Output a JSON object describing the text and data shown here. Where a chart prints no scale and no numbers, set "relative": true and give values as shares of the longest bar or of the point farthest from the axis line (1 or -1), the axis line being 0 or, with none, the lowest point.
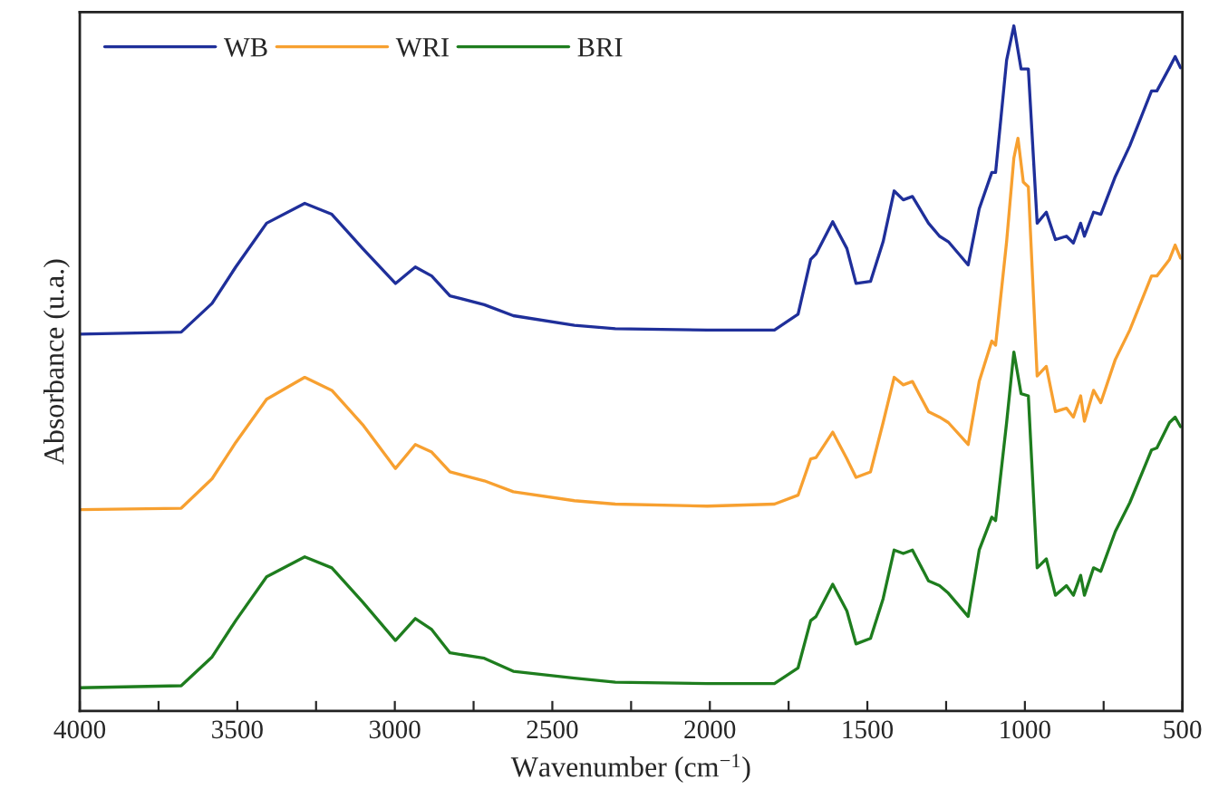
{
  "chart_data": {
    "type": "line",
    "relative": true,
    "xlabel": "Wavenumber (cm$^{−1}$)",
    "ylabel": "Absorbance (u.a.)",
    "xlim": [
      4000,
      500
    ],
    "xticks": [
      4000,
      {
        "value": 3750,
        "label": null
      },
      3500,
      {
        "value": 3250,
        "label": null
      },
      3000,
      {
        "value": 2750,
        "label": null
      },
      2500,
      {
        "value": 2250,
        "label": null
      },
      2000,
      {
        "value": 1750,
        "label": null
      },
      1500,
      {
        "value": 1250,
        "label": null
      },
      1000,
      {
        "value": 750,
        "label": null
      },
      500
    ],
    "tick_labels": "x",
    "grid": false,
    "legend": "top left",
    "line_style": "solid",
    "marker": "none",
    "series": [
      {
        "name": "WB",
        "color": "#1f2f9a",
        "x": [
          4000,
          3678,
          3580,
          3505,
          3407,
          3286,
          3200,
          3102,
          2998,
          2935,
          2883,
          2825,
          2716,
          2624,
          2430,
          2300,
          2008,
          1795,
          1720,
          1680,
          1663,
          1610,
          1565,
          1536,
          1490,
          1450,
          1415,
          1386,
          1357,
          1306,
          1271,
          1243,
          1180,
          1145,
          1105,
          1093,
          1058,
          1035,
          1012,
          989,
          961,
          932,
          903,
          868,
          846,
          823,
          811,
          782,
          759,
          713,
          667,
          598,
          581,
          541,
          523,
          506
        ],
        "values": [
          0.55,
          0.553,
          0.595,
          0.648,
          0.712,
          0.741,
          0.725,
          0.675,
          0.624,
          0.648,
          0.635,
          0.606,
          0.593,
          0.577,
          0.563,
          0.558,
          0.556,
          0.556,
          0.579,
          0.659,
          0.667,
          0.714,
          0.675,
          0.624,
          0.627,
          0.685,
          0.759,
          0.746,
          0.751,
          0.712,
          0.693,
          0.685,
          0.651,
          0.733,
          0.786,
          0.786,
          0.95,
          1,
          0.937,
          0.937,
          0.712,
          0.728,
          0.688,
          0.693,
          0.683,
          0.712,
          0.693,
          0.728,
          0.725,
          0.78,
          0.825,
          0.905,
          0.905,
          0.939,
          0.955,
          0.939
        ]
      },
      {
        "name": "WRI",
        "color": "#f7a030",
        "x": [
          4000,
          3678,
          3580,
          3505,
          3407,
          3286,
          3200,
          3102,
          2998,
          2935,
          2883,
          2825,
          2716,
          2624,
          2430,
          2300,
          2008,
          1795,
          1720,
          1680,
          1663,
          1610,
          1565,
          1536,
          1490,
          1450,
          1415,
          1386,
          1357,
          1306,
          1271,
          1243,
          1180,
          1145,
          1105,
          1093,
          1058,
          1035,
          1022,
          1005,
          989,
          961,
          932,
          903,
          868,
          846,
          823,
          811,
          782,
          759,
          713,
          667,
          598,
          581,
          541,
          523,
          506
        ],
        "values": [
          0.294,
          0.296,
          0.339,
          0.392,
          0.455,
          0.487,
          0.468,
          0.418,
          0.354,
          0.389,
          0.378,
          0.349,
          0.336,
          0.32,
          0.307,
          0.302,
          0.299,
          0.302,
          0.315,
          0.368,
          0.37,
          0.407,
          0.368,
          0.341,
          0.349,
          0.421,
          0.487,
          0.476,
          0.481,
          0.437,
          0.429,
          0.421,
          0.389,
          0.481,
          0.54,
          0.534,
          0.685,
          0.807,
          0.836,
          0.772,
          0.765,
          0.489,
          0.503,
          0.437,
          0.442,
          0.429,
          0.46,
          0.423,
          0.468,
          0.45,
          0.513,
          0.556,
          0.635,
          0.635,
          0.659,
          0.68,
          0.661
        ]
      },
      {
        "name": "BRI",
        "color": "#1e7d1e",
        "x": [
          4000,
          3678,
          3580,
          3505,
          3407,
          3286,
          3200,
          3102,
          2998,
          2935,
          2883,
          2825,
          2716,
          2624,
          2430,
          2300,
          2008,
          1795,
          1720,
          1680,
          1663,
          1610,
          1565,
          1536,
          1490,
          1450,
          1415,
          1386,
          1357,
          1306,
          1271,
          1243,
          1180,
          1145,
          1105,
          1093,
          1058,
          1035,
          1012,
          989,
          961,
          932,
          903,
          868,
          846,
          823,
          811,
          782,
          759,
          713,
          667,
          598,
          581,
          541,
          523,
          506
        ],
        "values": [
          0.034,
          0.037,
          0.079,
          0.132,
          0.196,
          0.225,
          0.209,
          0.159,
          0.103,
          0.135,
          0.119,
          0.085,
          0.077,
          0.058,
          0.048,
          0.042,
          0.04,
          0.04,
          0.063,
          0.132,
          0.138,
          0.185,
          0.146,
          0.098,
          0.106,
          0.164,
          0.235,
          0.23,
          0.235,
          0.19,
          0.183,
          0.172,
          0.138,
          0.235,
          0.283,
          0.278,
          0.421,
          0.524,
          0.463,
          0.46,
          0.209,
          0.222,
          0.169,
          0.183,
          0.169,
          0.198,
          0.169,
          0.209,
          0.204,
          0.262,
          0.304,
          0.381,
          0.384,
          0.421,
          0.429,
          0.415
        ]
      }
    ]
  }
}
